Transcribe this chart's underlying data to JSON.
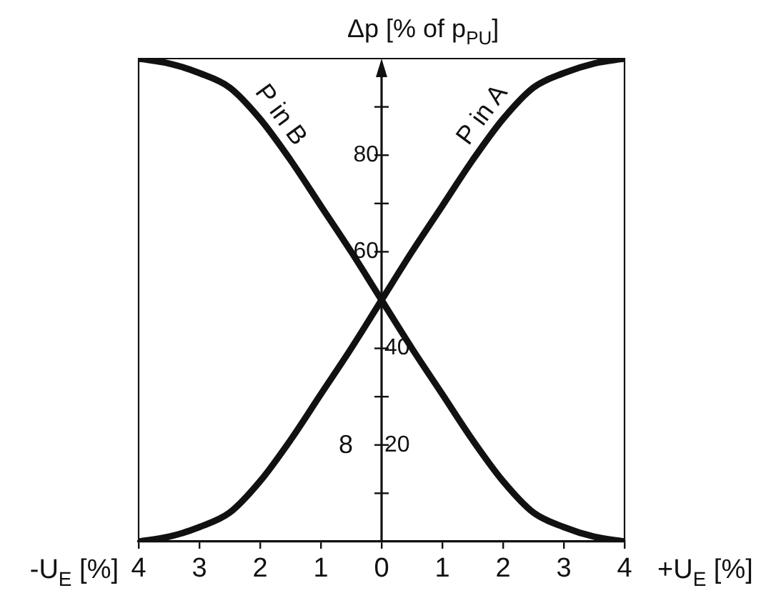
{
  "chart_data": {
    "type": "line",
    "ylabel": "Δp [% of p$_{PU}$]",
    "xlabel": "-U$_{E}$ [%]",
    "x": [
      -4,
      -3.5,
      -3,
      -2.5,
      -2,
      -1.5,
      -1,
      -0.5,
      0,
      0.5,
      1,
      1.5,
      2,
      2.5,
      3,
      3.5,
      4
    ],
    "series": [
      {
        "name": "P in A",
        "color": "#111111",
        "values": [
          0,
          1,
          3,
          6,
          12.5,
          21,
          30.5,
          40,
          50,
          60,
          69.5,
          79,
          87.5,
          94,
          97,
          99,
          100
        ]
      },
      {
        "name": "P in B",
        "color": "#111111",
        "values": [
          100,
          99,
          97,
          94,
          87.5,
          79,
          69.5,
          60,
          50,
          40,
          30.5,
          21,
          12.5,
          6,
          3,
          1,
          0
        ]
      }
    ],
    "xlim": [
      -4,
      4
    ],
    "xticks": [
      {
        "value": -4,
        "label": "4"
      },
      {
        "value": -3,
        "label": "3"
      },
      {
        "value": -2,
        "label": "2"
      },
      {
        "value": -1,
        "label": "1"
      },
      0,
      1,
      2,
      3,
      4
    ],
    "ylim": [
      0,
      100
    ],
    "yticks": [
      {
        "value": 10,
        "label": null
      },
      20,
      {
        "value": 30,
        "label": null
      },
      40,
      {
        "value": 70,
        "label": null
      },
      {
        "value": 90,
        "label": null
      }
    ],
    "y2lim": [
      0,
      100
    ],
    "y2ticks": [
      60,
      80
    ],
    "grid": false,
    "legend": false,
    "marker": "none",
    "line_style": "solid",
    "annotations": [
      "+U$_{E}$ [%]",
      "8"
    ]
  }
}
